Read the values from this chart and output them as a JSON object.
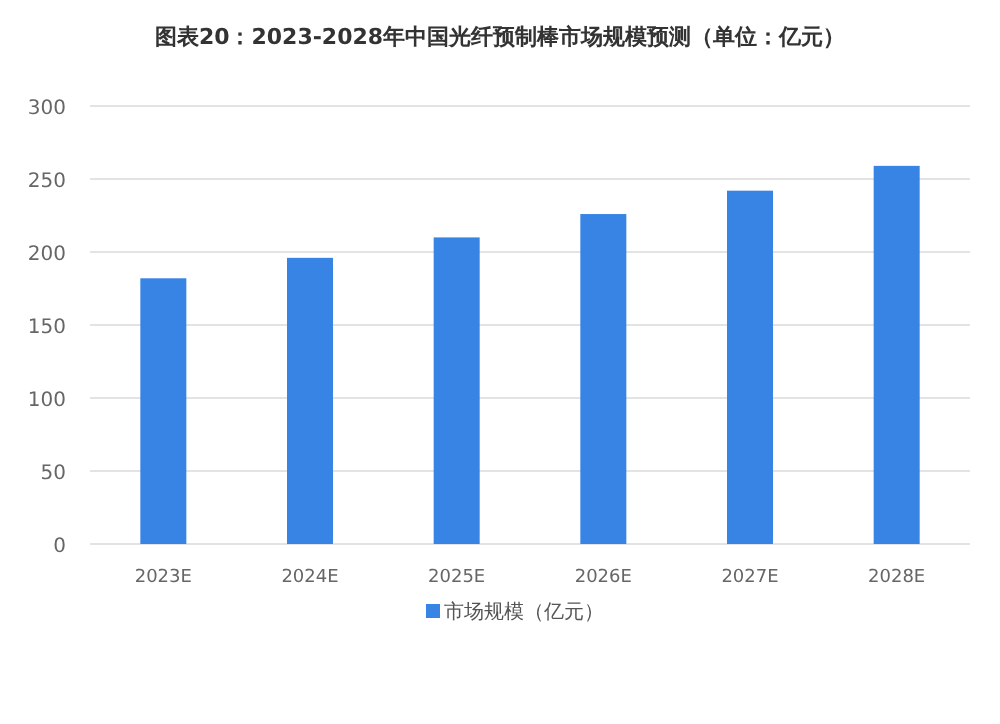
{
  "chart_data": {
    "type": "bar",
    "title": "图表20：2023-2028年中国光纤预制棒市场规模预测（单位：亿元）",
    "categories": [
      "2023E",
      "2024E",
      "2025E",
      "2026E",
      "2027E",
      "2028E"
    ],
    "series": [
      {
        "name": "市场规模（亿元）",
        "color": "#3884e5",
        "values": [
          182,
          196,
          210,
          226,
          242,
          259
        ]
      }
    ],
    "ylim": [
      0,
      300
    ],
    "yticks": [
      0,
      50,
      100,
      150,
      200,
      250,
      300
    ],
    "grid": "y",
    "legend": "bottom"
  }
}
